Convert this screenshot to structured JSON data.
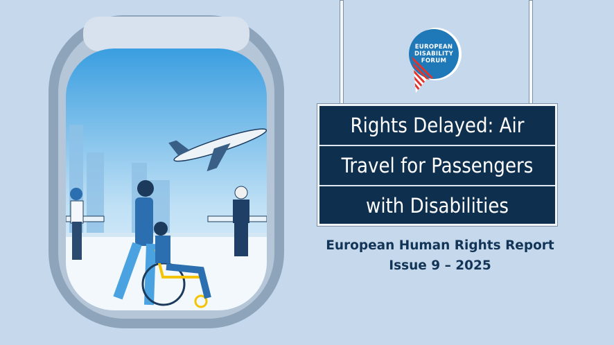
{
  "logo": {
    "text": [
      "EUROPEAN",
      "DISABILITY",
      "FORUM"
    ],
    "color": "#1f78b8",
    "stripe_color": "#e2342d"
  },
  "sign": {
    "lines": [
      "Rights Delayed: Air",
      "Travel for Passengers",
      "with Disabilities"
    ],
    "color": "#0f2f4f"
  },
  "subtitle": {
    "line1": "European Human Rights Report",
    "line2": "Issue 9 – 2025"
  },
  "colors": {
    "background": "#c6d9ec",
    "window_frame": "#8ea4bb",
    "text": "#123456"
  }
}
